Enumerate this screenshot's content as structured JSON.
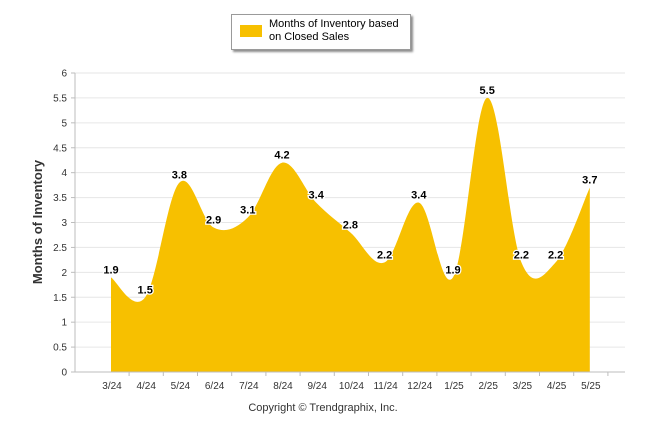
{
  "chart_data": {
    "type": "area",
    "categories": [
      "3/24",
      "4/24",
      "5/24",
      "6/24",
      "7/24",
      "8/24",
      "9/24",
      "10/24",
      "11/24",
      "12/24",
      "1/25",
      "2/25",
      "3/25",
      "4/25",
      "5/25"
    ],
    "series": [
      {
        "name": "Months of Inventory based on Closed Sales",
        "values": [
          1.9,
          1.5,
          3.8,
          2.9,
          3.1,
          4.2,
          3.4,
          2.8,
          2.2,
          3.4,
          1.9,
          5.5,
          2.2,
          2.2,
          3.7
        ]
      }
    ],
    "data_labels": [
      "1.9",
      "1.5",
      "3.8",
      "2.9",
      "3.1",
      "4.2",
      "3.4",
      "2.8",
      "2.2",
      "3.4",
      "1.9",
      "5.5",
      "2.2",
      "2.2",
      "3.7"
    ],
    "ylabel": "Months of Inventory",
    "xlabel": "",
    "ylim": [
      0,
      6
    ],
    "yticks": [
      0,
      0.5,
      1,
      1.5,
      2,
      2.5,
      3,
      3.5,
      4,
      4.5,
      5,
      5.5,
      6
    ],
    "grid": true,
    "legend_position": "top-center",
    "color": "#f7c000"
  },
  "legend": {
    "label": "Months of Inventory based\non Closed Sales"
  },
  "footer": {
    "copyright": "Copyright © Trendgraphix, Inc."
  }
}
